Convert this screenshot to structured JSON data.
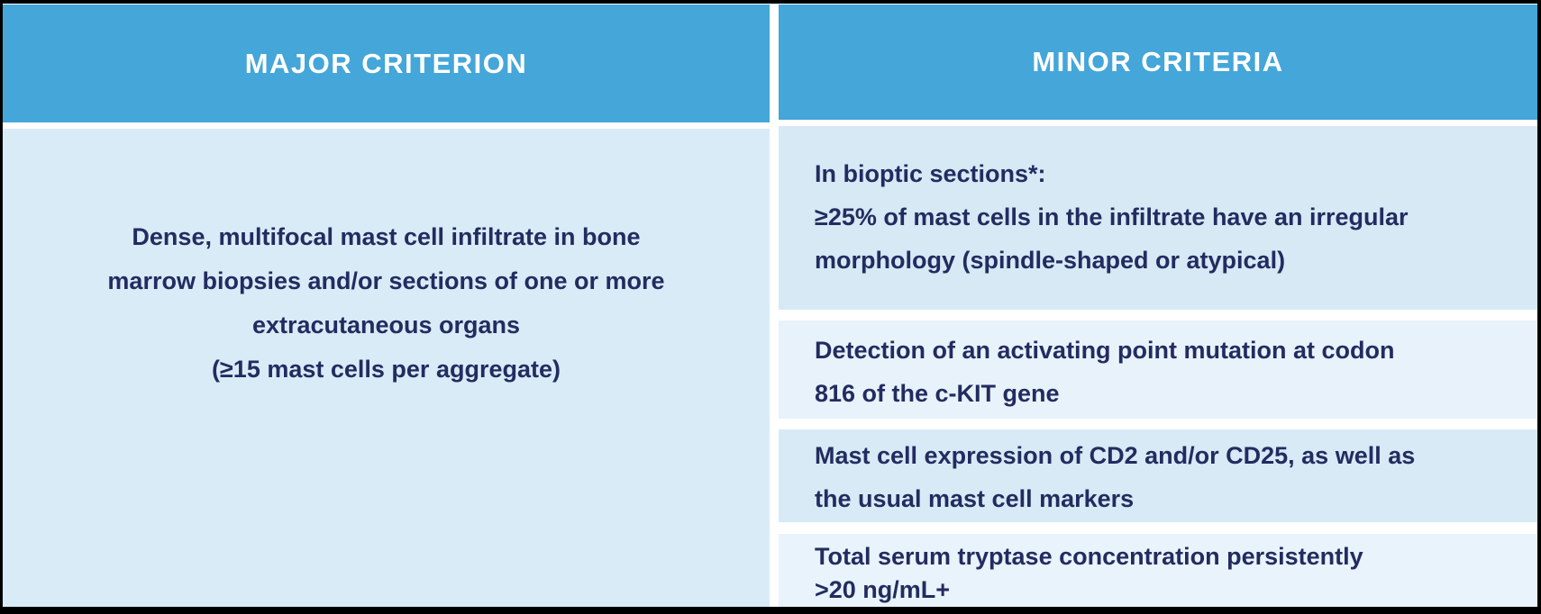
{
  "colors": {
    "header_bg": "#44a6d9",
    "header_text": "#ffffff",
    "cell_bg_dark": "#d7eaf6",
    "cell_bg_light": "#e8f2fa",
    "body_text": "#232c60",
    "gutter": "#ffffff",
    "frame": "#000000"
  },
  "table": {
    "major": {
      "header": "MAJOR CRITERION",
      "body": "Dense, multifocal mast cell infiltrate in bone\nmarrow biopsies and/or sections of one or more\nextracutaneous organs\n(≥15 mast cells per aggregate)"
    },
    "minor": {
      "header": "MINOR CRITERIA",
      "items": [
        {
          "text": "In bioptic sections*:\n≥25% of mast cells in the infiltrate have an irregular\nmorphology (spindle-shaped or atypical)"
        },
        {
          "text": "Detection of an activating point mutation at codon\n816 of the c-KIT gene"
        },
        {
          "text": "Mast cell expression of CD2 and/or CD25, as well as\nthe usual mast cell markers"
        },
        {
          "text": "Total serum tryptase concentration persistently\n>20 ng/mL+"
        }
      ]
    }
  }
}
